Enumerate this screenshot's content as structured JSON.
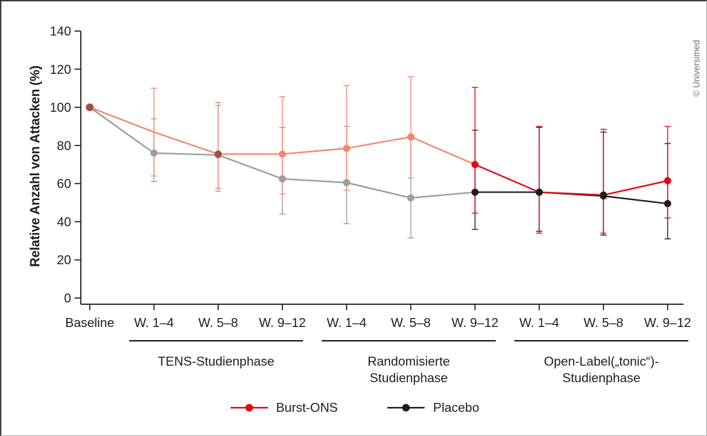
{
  "window": {
    "copyright": "© Universimed"
  },
  "chart_data": {
    "type": "line",
    "title": "",
    "ylabel": "Relative Anzahl von Attacken (%)",
    "xlabel": "",
    "ylim": [
      0,
      140
    ],
    "yticks": [
      0,
      20,
      40,
      60,
      80,
      100,
      120,
      140
    ],
    "grid": false,
    "legend_position": "bottom",
    "categories": [
      "Baseline",
      "W. 1–4",
      "W. 5–8",
      "W. 9–12",
      "W. 1–4",
      "W. 5–8",
      "W. 9–12",
      "W. 1–4",
      "W. 5–8",
      "W. 9–12"
    ],
    "phases": [
      {
        "label_lines": [
          "TENS-Studienphase"
        ],
        "from_index": 1,
        "to_index": 3
      },
      {
        "label_lines": [
          "Randomisierte",
          "Studienphase"
        ],
        "from_index": 4,
        "to_index": 6
      },
      {
        "label_lines": [
          "Open-Label(„tonic“)-",
          "Studienphase"
        ],
        "from_index": 7,
        "to_index": 9
      }
    ],
    "series": [
      {
        "name": "Placebo",
        "color_early": "#9d9d9c",
        "color_late": "#1d1d1b",
        "transition_index": 6,
        "points": [
          {
            "v": 100,
            "marker": true
          },
          {
            "v": 76,
            "lo": 61,
            "hi": 94,
            "marker": true
          },
          {
            "v": 75,
            "lo": 57.5,
            "hi": 101,
            "marker": true
          },
          {
            "v": 62.5,
            "lo": 44,
            "hi": 89.5,
            "marker": true
          },
          {
            "v": 60.5,
            "lo": 39,
            "hi": 90,
            "marker": true
          },
          {
            "v": 52.5,
            "lo": 31.5,
            "hi": 84,
            "marker": true
          },
          {
            "v": 55.5,
            "lo": 36,
            "hi": 88,
            "marker": true
          },
          {
            "v": 55.5,
            "lo": 35,
            "hi": 89.5,
            "marker": true
          },
          {
            "v": 53.5,
            "lo": 33,
            "hi": 87,
            "marker": true
          },
          {
            "v": 49.5,
            "lo": 31,
            "hi": 81,
            "marker": true
          }
        ]
      },
      {
        "name": "Burst-ONS",
        "color_early": "#f0876f",
        "color_late": "#e30613",
        "transition_index": 6,
        "points": [
          {
            "v": 100,
            "marker": true,
            "marker_color": "#9b4f41"
          },
          {
            "v": 87,
            "lo": 64,
            "hi": 110,
            "marker": false
          },
          {
            "v": 75.5,
            "lo": 56,
            "hi": 102.5,
            "marker": true,
            "marker_color": "#9b4f41"
          },
          {
            "v": 75.5,
            "lo": 54.5,
            "hi": 105.5,
            "marker": true
          },
          {
            "v": 78.5,
            "lo": 56.5,
            "hi": 111.5,
            "marker": true
          },
          {
            "v": 84.5,
            "lo": 63,
            "hi": 116,
            "marker": true
          },
          {
            "v": 70,
            "lo": 44.5,
            "hi": 110.5,
            "marker": true
          },
          {
            "v": 55.5,
            "lo": 34,
            "hi": 90,
            "marker": true,
            "marker_color": "#1d1d1b"
          },
          {
            "v": 54,
            "lo": 34,
            "hi": 88.5,
            "marker": true,
            "marker_color": "#1d1d1b"
          },
          {
            "v": 61.5,
            "lo": 42,
            "hi": 90,
            "marker": true
          }
        ]
      }
    ],
    "legend": [
      {
        "label": "Burst-ONS",
        "color": "#e30613"
      },
      {
        "label": "Placebo",
        "color": "#1d1d1b"
      }
    ],
    "axis_color": "#1d1d1b"
  }
}
